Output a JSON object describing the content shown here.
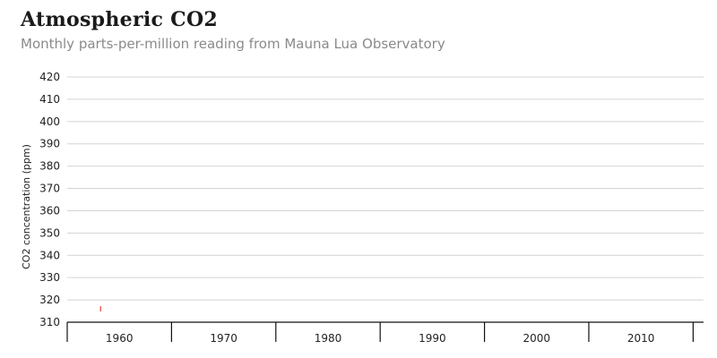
{
  "chart_data": {
    "type": "line",
    "title": "Atmospheric CO2",
    "subtitle": "Monthly parts-per-million reading from Mauna Lua Observatory",
    "xlabel": "",
    "ylabel": "CO2 concentration (ppm)",
    "ylim": [
      310,
      420
    ],
    "y_ticks": [
      310,
      320,
      330,
      340,
      350,
      360,
      370,
      380,
      390,
      400,
      410,
      420
    ],
    "xlim": [
      1955,
      2016
    ],
    "x_ticks": [
      1960,
      1970,
      1980,
      1990,
      2000,
      2010
    ],
    "grid": true,
    "series": [
      {
        "color": "#e8443a",
        "x": [
          1958.2
        ],
        "y": [
          316
        ]
      }
    ]
  }
}
